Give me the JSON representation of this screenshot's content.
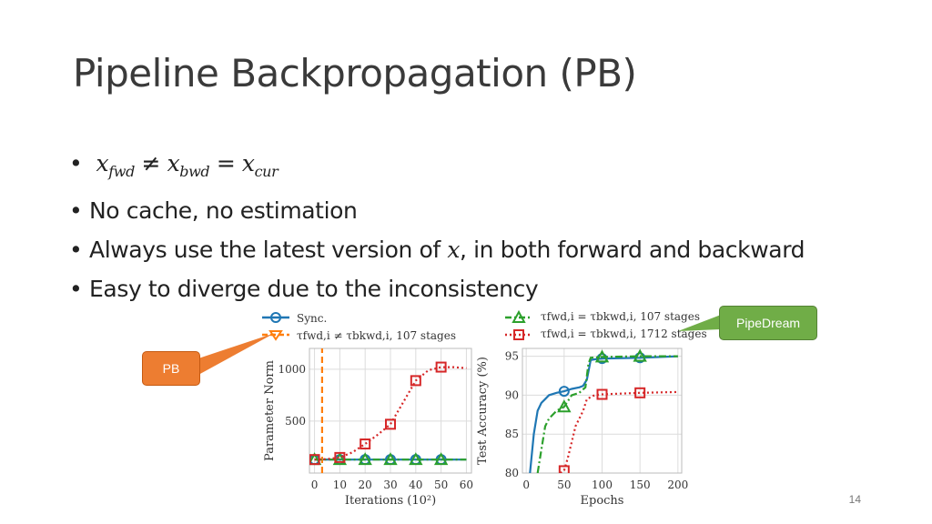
{
  "slide": {
    "title": "Pipeline Backpropagation (PB)",
    "page_number": "14"
  },
  "bullets": {
    "b1": {
      "x1": "x",
      "s1": "fwd",
      "op1": "≠",
      "x2": "x",
      "s2": "bwd",
      "op2": "=",
      "x3": "x",
      "s3": "cur"
    },
    "b2": "No cache, no estimation",
    "b3": {
      "pre": "Always use the latest version of ",
      "var": "x",
      "post": ", in both forward and backward"
    },
    "b4": "Easy to diverge due to the inconsistency"
  },
  "callouts": {
    "pb": {
      "label": "PB",
      "color": "#ed7d31"
    },
    "pipedream": {
      "label": "PipeDream",
      "color": "#70ad47"
    }
  },
  "legend_left": {
    "sync": "Sync.",
    "tau": "τfwd,i ≠ τbkwd,i, 107 stages"
  },
  "legend_right": {
    "tau107": "τfwd,i = τbkwd,i, 107 stages",
    "tau1712": "τfwd,i = τbkwd,i, 1712 stages"
  },
  "chart_data": [
    {
      "type": "line",
      "xlabel": "Iterations (10²)",
      "ylabel": "Parameter Norm",
      "xticks": [
        0,
        10,
        20,
        30,
        40,
        50,
        60
      ],
      "yticks": [
        500,
        1000
      ],
      "xlim": [
        -2,
        62
      ],
      "ylim": [
        0,
        1200
      ],
      "grid": true,
      "series": [
        {
          "name": "Sync.",
          "color": "#1f77b4",
          "style": "solid",
          "marker": "circle",
          "x": [
            0,
            10,
            20,
            30,
            40,
            50,
            60
          ],
          "y": [
            130,
            130,
            130,
            130,
            130,
            130,
            130
          ],
          "markers": [
            0,
            10,
            20,
            30,
            40,
            50
          ]
        },
        {
          "name": "τfwd,i ≠ τbkwd,i, 107 stages",
          "color": "#ff7f0e",
          "style": "dashed",
          "marker": "triangle-down",
          "x": [
            3,
            3
          ],
          "y": [
            0,
            1200
          ],
          "markers": []
        },
        {
          "name": "τfwd,i = τbkwd,i, 107 stages",
          "color": "#2ca02c",
          "style": "dashdot",
          "marker": "triangle",
          "x": [
            0,
            10,
            20,
            30,
            40,
            50,
            60
          ],
          "y": [
            130,
            130,
            130,
            130,
            130,
            130,
            130
          ],
          "markers": [
            0,
            10,
            20,
            30,
            40,
            50
          ]
        },
        {
          "name": "τfwd,i = τbkwd,i, 1712 stages",
          "color": "#d62728",
          "style": "dotted",
          "marker": "square",
          "x": [
            0,
            5,
            10,
            15,
            20,
            25,
            30,
            35,
            40,
            45,
            50,
            55,
            60
          ],
          "y": [
            130,
            135,
            150,
            200,
            280,
            370,
            470,
            680,
            890,
            990,
            1020,
            1020,
            1010
          ],
          "markers": [
            0,
            10,
            20,
            30,
            40,
            50
          ]
        }
      ]
    },
    {
      "type": "line",
      "xlabel": "Epochs",
      "ylabel": "Test Accuracy (%)",
      "xticks": [
        0,
        50,
        100,
        150,
        200
      ],
      "yticks": [
        80,
        85,
        90,
        95
      ],
      "xlim": [
        -5,
        205
      ],
      "ylim": [
        80,
        96
      ],
      "grid": true,
      "series": [
        {
          "name": "Sync.",
          "color": "#1f77b4",
          "style": "solid",
          "marker": "circle",
          "x": [
            5,
            10,
            15,
            20,
            25,
            30,
            40,
            50,
            60,
            70,
            75,
            80,
            85,
            90,
            100,
            150,
            200
          ],
          "y": [
            80,
            85,
            88,
            89,
            89.5,
            90,
            90.3,
            90.5,
            90.8,
            91,
            91.2,
            92,
            94.5,
            94.6,
            94.7,
            94.8,
            95
          ],
          "markers": [
            50,
            100,
            150
          ]
        },
        {
          "name": "τfwd,i = τbkwd,i, 107 stages",
          "color": "#2ca02c",
          "style": "dashdot",
          "marker": "triangle",
          "x": [
            15,
            20,
            25,
            30,
            40,
            50,
            60,
            70,
            78,
            82,
            85,
            100,
            150,
            200
          ],
          "y": [
            80,
            83,
            86,
            87,
            88,
            88.5,
            90,
            90.3,
            91,
            94,
            94.8,
            94.9,
            95,
            95
          ],
          "markers": [
            50,
            100,
            150
          ]
        },
        {
          "name": "τfwd,i = τbkwd,i, 1712 stages",
          "color": "#d62728",
          "style": "dotted",
          "marker": "square",
          "x": [
            45,
            50,
            55,
            60,
            65,
            70,
            75,
            80,
            90,
            100,
            150,
            200
          ],
          "y": [
            80,
            80.3,
            82,
            84,
            86,
            87,
            88,
            89.5,
            90,
            90.1,
            90.3,
            90.4
          ],
          "markers": [
            50,
            100,
            150
          ]
        }
      ]
    }
  ]
}
